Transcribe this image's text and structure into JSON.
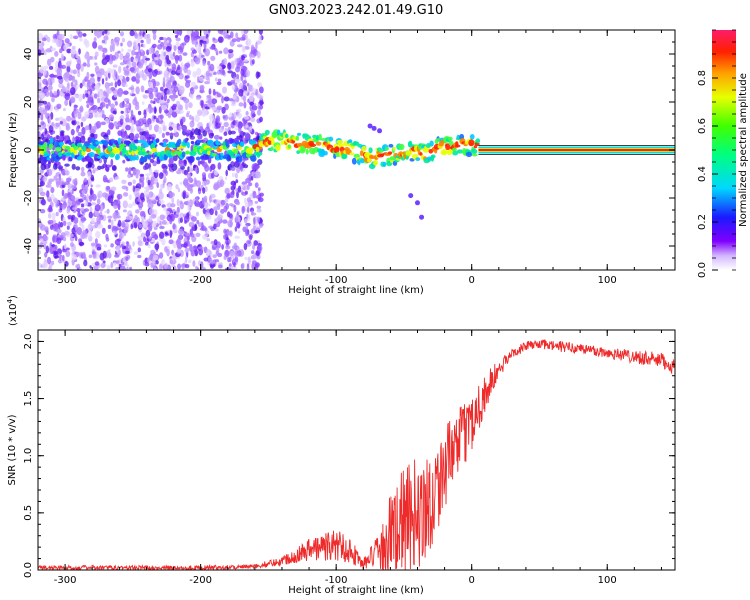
{
  "title": "GN03.2023.242.01.49.G10",
  "chart_data": [
    {
      "type": "heatmap",
      "xlabel": "Height of straight line (km)",
      "ylabel": "Frequency (Hz)",
      "xlim": [
        -320,
        150
      ],
      "ylim": [
        -50,
        50
      ],
      "xticks": [
        -300,
        -200,
        -100,
        0,
        100
      ],
      "yticks": [
        -40,
        -20,
        0,
        20,
        40
      ],
      "colorbar": {
        "label": "Normalized spectral amplitude",
        "range": [
          0,
          1
        ],
        "ticks": [
          0.0,
          0.2,
          0.4,
          0.6,
          0.8
        ],
        "tick_labels": [
          "0.0",
          "0.2",
          "0.4",
          "0.6",
          "0.8"
        ]
      },
      "ridge": {
        "description_points_km_hz": [
          [
            -310,
            0
          ],
          [
            -250,
            0
          ],
          [
            -200,
            0
          ],
          [
            -160,
            0
          ],
          [
            -150,
            4
          ],
          [
            -130,
            3
          ],
          [
            -110,
            2
          ],
          [
            -90,
            0
          ],
          [
            -75,
            -3
          ],
          [
            -60,
            -2
          ],
          [
            -45,
            0
          ],
          [
            -35,
            -2
          ],
          [
            -25,
            1
          ],
          [
            -10,
            2
          ],
          [
            0,
            2
          ],
          [
            5,
            1
          ]
        ],
        "constant_line": {
          "x_from": 5,
          "x_to": 150,
          "y": 0
        },
        "scatter_cutoff_km": -165,
        "grid": false
      }
    },
    {
      "type": "line",
      "xlabel": "Height of straight line (km)",
      "ylabel": "SNR (10 * v/v)",
      "y_multiplier_label": "(x10",
      "y_multiplier_exp": "4",
      "y_multiplier_close": ")",
      "xlim": [
        -320,
        150
      ],
      "ylim": [
        0,
        2.1
      ],
      "xticks": [
        -300,
        -200,
        -100,
        0,
        100
      ],
      "yticks": [
        0.0,
        0.5,
        1.0,
        1.5,
        2.0
      ],
      "ytick_labels": [
        "0.0",
        "0.5",
        "1.0",
        "1.5",
        "2.0"
      ],
      "color": "#ee2a2a",
      "envelope": {
        "x": [
          -320,
          -250,
          -200,
          -160,
          -140,
          -120,
          -100,
          -90,
          -80,
          -70,
          -60,
          -50,
          -40,
          -30,
          -20,
          -10,
          0,
          10,
          20,
          30,
          40,
          50,
          60,
          80,
          100,
          120,
          140,
          150
        ],
        "base": [
          0.02,
          0.02,
          0.02,
          0.03,
          0.08,
          0.18,
          0.22,
          0.18,
          0.05,
          0.15,
          0.3,
          0.4,
          0.5,
          0.6,
          0.9,
          1.1,
          1.3,
          1.55,
          1.75,
          1.9,
          1.96,
          1.98,
          1.96,
          1.94,
          1.9,
          1.87,
          1.83,
          1.78
        ],
        "noise": [
          0.02,
          0.02,
          0.02,
          0.02,
          0.04,
          0.1,
          0.15,
          0.12,
          0.05,
          0.15,
          0.4,
          0.5,
          0.5,
          0.45,
          0.35,
          0.3,
          0.25,
          0.2,
          0.08,
          0.04,
          0.04,
          0.04,
          0.05,
          0.05,
          0.05,
          0.06,
          0.07,
          0.08
        ]
      },
      "grid": false
    }
  ]
}
